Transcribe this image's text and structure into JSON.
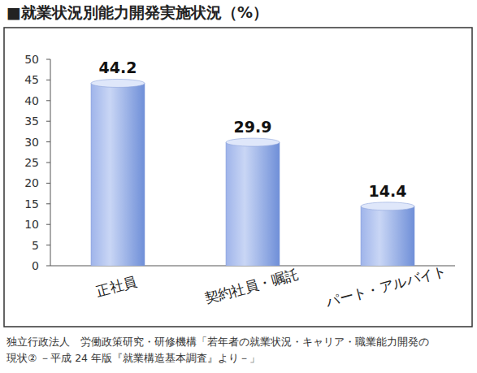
{
  "chart_data": {
    "type": "bar",
    "title": "■就業状況別能力開発実施状況（%）",
    "categories": [
      "正社員",
      "契約社員・嘱託",
      "パート・アルバイト"
    ],
    "values": [
      44.2,
      29.9,
      14.4
    ],
    "color": "#6f8fd8",
    "ylim": [
      0,
      50
    ],
    "yticks": [
      0,
      5,
      10,
      15,
      20,
      25,
      30,
      35,
      40,
      45,
      50
    ],
    "grid": false,
    "data_labels": true,
    "source": [
      "独立行政法人　労働政策研究・研修機構「若年者の就業状況・キャリア・職業能力開発の",
      "現状② －平成 24 年版『就業構造基本調査』より－」"
    ]
  }
}
